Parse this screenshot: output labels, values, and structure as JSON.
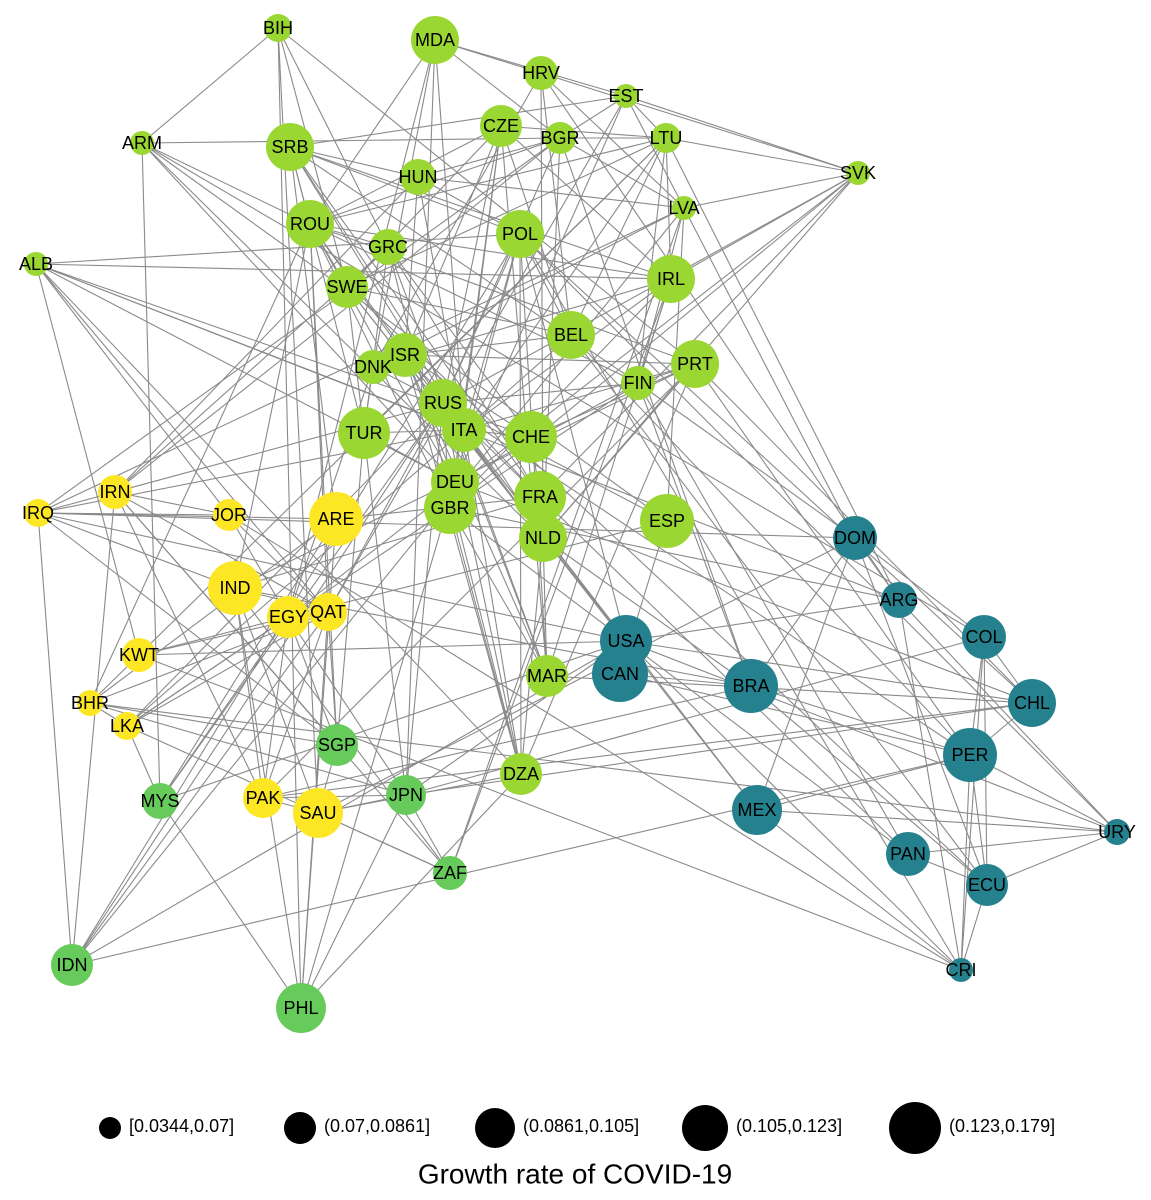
{
  "nodes": [
    "BIH",
    "MDA",
    "HRV",
    "EST",
    "CZE",
    "BGR",
    "LTU",
    "ARM",
    "SRB",
    "SVK",
    "HUN",
    "LVA",
    "ROU",
    "POL",
    "GRC",
    "ALB",
    "IRL",
    "SWE",
    "BEL",
    "ISR",
    "DNK",
    "PRT",
    "FIN",
    "RUS",
    "ITA",
    "CHE",
    "TUR",
    "DEU",
    "GBR",
    "FRA",
    "NLD",
    "ESP",
    "DOM",
    "ARG",
    "COL",
    "USA",
    "CAN",
    "BRA",
    "CHL",
    "PER",
    "MEX",
    "PAN",
    "ECU",
    "URY",
    "CRI",
    "MAR",
    "DZA",
    "IRN",
    "IRQ",
    "JOR",
    "ARE",
    "IND",
    "EGY",
    "QAT",
    "KWT",
    "BHR",
    "LKA",
    "SGP",
    "MYS",
    "PAK",
    "SAU",
    "JPN",
    "ZAF",
    "IDN",
    "PHL"
  ],
  "legend": {
    "title": "Growth rate of COVID-19",
    "items": [
      "[0.0344,0.07]",
      "(0.07,0.0861]",
      "(0.0861,0.105]",
      "(0.105,0.123]",
      "(0.123,0.179]"
    ]
  }
}
